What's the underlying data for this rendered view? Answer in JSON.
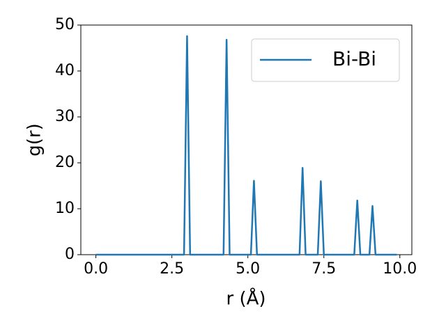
{
  "chart_data": {
    "type": "line",
    "x": [
      0,
      2.9,
      3.0,
      3.1,
      4.2,
      4.3,
      4.4,
      5.1,
      5.2,
      5.3,
      6.7,
      6.8,
      6.9,
      7.3,
      7.4,
      7.5,
      8.5,
      8.6,
      8.7,
      9.0,
      9.1,
      9.2,
      9.9
    ],
    "series": [
      {
        "name": "Bi-Bi",
        "color": "#1f77b4",
        "values": [
          0,
          0,
          47.6,
          0,
          0,
          46.8,
          0,
          0,
          16.1,
          0,
          0,
          18.9,
          0,
          0,
          16.0,
          0,
          0,
          11.8,
          0,
          0,
          10.6,
          0,
          0
        ]
      }
    ],
    "xlabel": "r (Å)",
    "ylabel": "g(r)",
    "xlim": [
      -0.495,
      10.395
    ],
    "ylim": [
      0,
      50
    ],
    "xticks": [
      {
        "value": 0,
        "label": "0.0"
      },
      {
        "value": 2.5,
        "label": "2.5"
      },
      {
        "value": 5,
        "label": "5.0"
      },
      {
        "value": 7.5,
        "label": "7.5"
      },
      {
        "value": 10,
        "label": "10.0"
      }
    ],
    "yticks": [
      0,
      10,
      20,
      30,
      40,
      50
    ],
    "grid": false,
    "legend": "upper right"
  }
}
